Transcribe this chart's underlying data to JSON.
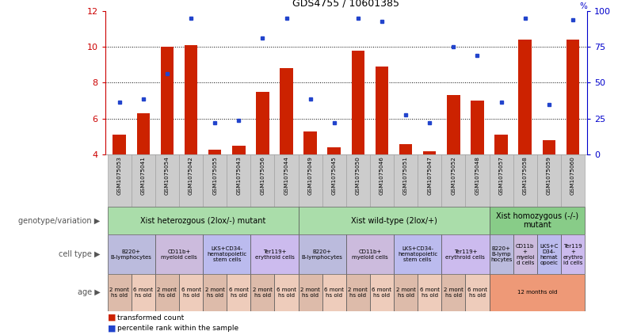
{
  "title": "GDS4755 / 10601385",
  "samples": [
    "GSM1075053",
    "GSM1075041",
    "GSM1075054",
    "GSM1075042",
    "GSM1075055",
    "GSM1075043",
    "GSM1075056",
    "GSM1075044",
    "GSM1075049",
    "GSM1075045",
    "GSM1075050",
    "GSM1075046",
    "GSM1075051",
    "GSM1075047",
    "GSM1075052",
    "GSM1075048",
    "GSM1075057",
    "GSM1075058",
    "GSM1075059",
    "GSM1075060"
  ],
  "bar_values": [
    5.1,
    6.3,
    10.0,
    10.1,
    4.3,
    4.5,
    7.5,
    8.8,
    5.3,
    4.4,
    9.8,
    8.9,
    4.6,
    4.2,
    7.3,
    7.0,
    5.1,
    10.4,
    4.8,
    10.4
  ],
  "dot_values": [
    6.9,
    7.1,
    8.5,
    11.6,
    5.8,
    5.9,
    10.5,
    11.6,
    7.1,
    5.8,
    11.6,
    11.4,
    6.2,
    5.8,
    10.0,
    9.5,
    6.9,
    11.6,
    6.8,
    11.5
  ],
  "ylim_left": [
    4,
    12
  ],
  "ylim_right": [
    0,
    100
  ],
  "yticks_left": [
    4,
    6,
    8,
    10,
    12
  ],
  "yticks_right": [
    0,
    25,
    50,
    75,
    100
  ],
  "bar_color": "#cc2200",
  "dot_color": "#2244cc",
  "genotype_labels": [
    {
      "text": "Xist heterozgous (2lox/-) mutant",
      "start": 0,
      "end": 8,
      "color": "#aaddaa"
    },
    {
      "text": "Xist wild-type (2lox/+)",
      "start": 8,
      "end": 16,
      "color": "#aaddaa"
    },
    {
      "text": "Xist homozygous (-/-)\nmutant",
      "start": 16,
      "end": 20,
      "color": "#88cc88"
    }
  ],
  "cell_type_groups": [
    {
      "text": "B220+\nB-lymphocytes",
      "start": 0,
      "end": 2,
      "color": "#bbbbdd"
    },
    {
      "text": "CD11b+\nmyeloid cells",
      "start": 2,
      "end": 4,
      "color": "#ccbbdd"
    },
    {
      "text": "LKS+CD34-\nhematopoietic\nstem cells",
      "start": 4,
      "end": 6,
      "color": "#bbbbee"
    },
    {
      "text": "Ter119+\nerythroid cells",
      "start": 6,
      "end": 8,
      "color": "#ccbbee"
    },
    {
      "text": "B220+\nB-lymphocytes",
      "start": 8,
      "end": 10,
      "color": "#bbbbdd"
    },
    {
      "text": "CD11b+\nmyeloid cells",
      "start": 10,
      "end": 12,
      "color": "#ccbbdd"
    },
    {
      "text": "LKS+CD34-\nhematopoietic\nstem cells",
      "start": 12,
      "end": 14,
      "color": "#bbbbee"
    },
    {
      "text": "Ter119+\nerythroid cells",
      "start": 14,
      "end": 16,
      "color": "#ccbbee"
    },
    {
      "text": "B220+\nB-lymp\nhocytes",
      "start": 16,
      "end": 17,
      "color": "#bbbbdd"
    },
    {
      "text": "CD11b\n+\nmyeloi\nd cells",
      "start": 17,
      "end": 18,
      "color": "#ccbbdd"
    },
    {
      "text": "LKS+C\nD34-\nhemat\nopoeic",
      "start": 18,
      "end": 19,
      "color": "#bbbbee"
    },
    {
      "text": "Ter119\n+\nerythro\nid cells",
      "start": 19,
      "end": 20,
      "color": "#ccbbee"
    }
  ],
  "age_groups": [
    {
      "text": "2 mont\nhs old",
      "start": 0,
      "end": 1,
      "color": "#ddbbaa"
    },
    {
      "text": "6 mont\nhs old",
      "start": 1,
      "end": 2,
      "color": "#eeccbb"
    },
    {
      "text": "2 mont\nhs old",
      "start": 2,
      "end": 3,
      "color": "#ddbbaa"
    },
    {
      "text": "6 mont\nhs old",
      "start": 3,
      "end": 4,
      "color": "#eeccbb"
    },
    {
      "text": "2 mont\nhs old",
      "start": 4,
      "end": 5,
      "color": "#ddbbaa"
    },
    {
      "text": "6 mont\nhs old",
      "start": 5,
      "end": 6,
      "color": "#eeccbb"
    },
    {
      "text": "2 mont\nhs old",
      "start": 6,
      "end": 7,
      "color": "#ddbbaa"
    },
    {
      "text": "6 mont\nhs old",
      "start": 7,
      "end": 8,
      "color": "#eeccbb"
    },
    {
      "text": "2 mont\nhs old",
      "start": 8,
      "end": 9,
      "color": "#ddbbaa"
    },
    {
      "text": "6 mont\nhs old",
      "start": 9,
      "end": 10,
      "color": "#eeccbb"
    },
    {
      "text": "2 mont\nhs old",
      "start": 10,
      "end": 11,
      "color": "#ddbbaa"
    },
    {
      "text": "6 mont\nhs old",
      "start": 11,
      "end": 12,
      "color": "#eeccbb"
    },
    {
      "text": "2 mont\nhs old",
      "start": 12,
      "end": 13,
      "color": "#ddbbaa"
    },
    {
      "text": "6 mont\nhs old",
      "start": 13,
      "end": 14,
      "color": "#eeccbb"
    },
    {
      "text": "2 mont\nhs old",
      "start": 14,
      "end": 15,
      "color": "#ddbbaa"
    },
    {
      "text": "6 mont\nhs old",
      "start": 15,
      "end": 16,
      "color": "#eeccbb"
    },
    {
      "text": "12 months old",
      "start": 16,
      "end": 20,
      "color": "#ee9977"
    }
  ],
  "row_labels": [
    "genotype/variation",
    "cell type",
    "age"
  ],
  "legend_bar_label": "transformed count",
  "legend_dot_label": "percentile rank within the sample",
  "bg_color": "#ffffff",
  "right_axis_color": "#0000cc",
  "left_axis_color": "#cc0000",
  "sample_box_color": "#cccccc"
}
